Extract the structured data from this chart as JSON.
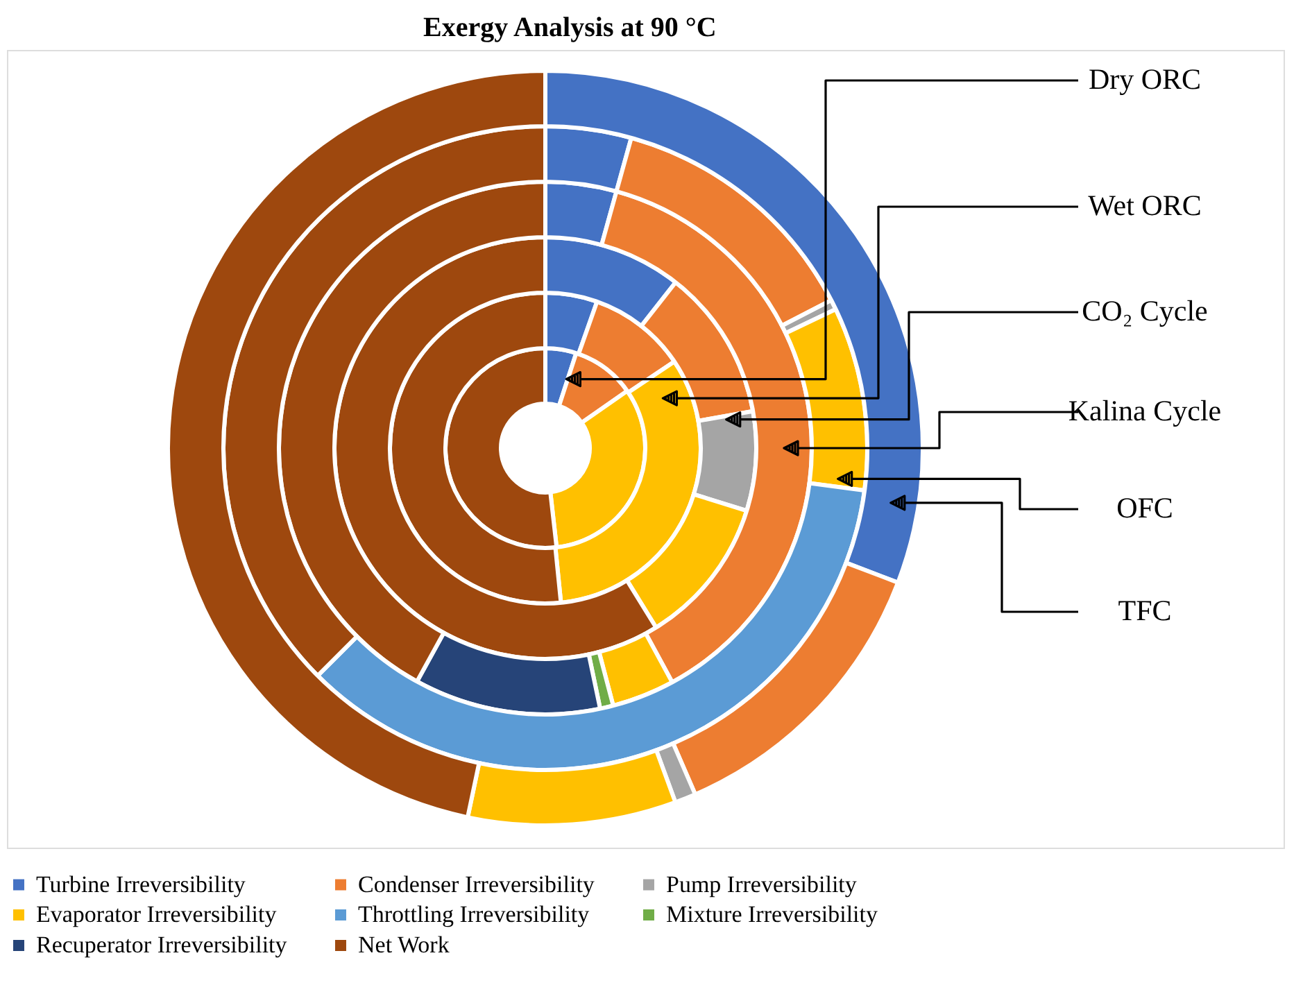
{
  "chart_data": {
    "type": "donut",
    "title": "Exergy Analysis at 90 °C",
    "categories": [
      "Turbine Irreversibility",
      "Condenser Irreversibility",
      "Pump Irreversibility",
      "Evaporator Irreversibility",
      "Throttling Irreversibility",
      "Mixture Irreversibility",
      "Recuperator Irreversibility",
      "Net Work"
    ],
    "colors": [
      "#4472c4",
      "#ed7d31",
      "#a5a5a5",
      "#ffc000",
      "#5b9bd5",
      "#70ad47",
      "#264478",
      "#9e480e"
    ],
    "series": [
      {
        "values": [
          5.0,
          10.3,
          null,
          32.9,
          null,
          null,
          null,
          51.8
        ]
      },
      {
        "values": [
          5.4,
          10.2,
          null,
          32.8,
          null,
          null,
          null,
          51.6
        ]
      },
      {
        "values": [
          10.6,
          11.6,
          7.6,
          11.4,
          null,
          null,
          null,
          58.8
        ]
      },
      {
        "values": [
          4.3,
          37.8,
          null,
          3.8,
          null,
          0.8,
          11.3,
          42.0
        ]
      },
      {
        "values": [
          4.3,
          13.1,
          0.5,
          9.2,
          35.4,
          null,
          null,
          37.5
        ]
      },
      {
        "values": [
          30.8,
          12.7,
          0.9,
          8.9,
          null,
          null,
          null,
          46.7
        ]
      }
    ],
    "annotations": [
      "Dry ORC",
      "Wet ORC",
      "CO₂ Cycle",
      "Kalina Cycle",
      "OFC",
      "TFC"
    ],
    "legend": "bottom"
  }
}
